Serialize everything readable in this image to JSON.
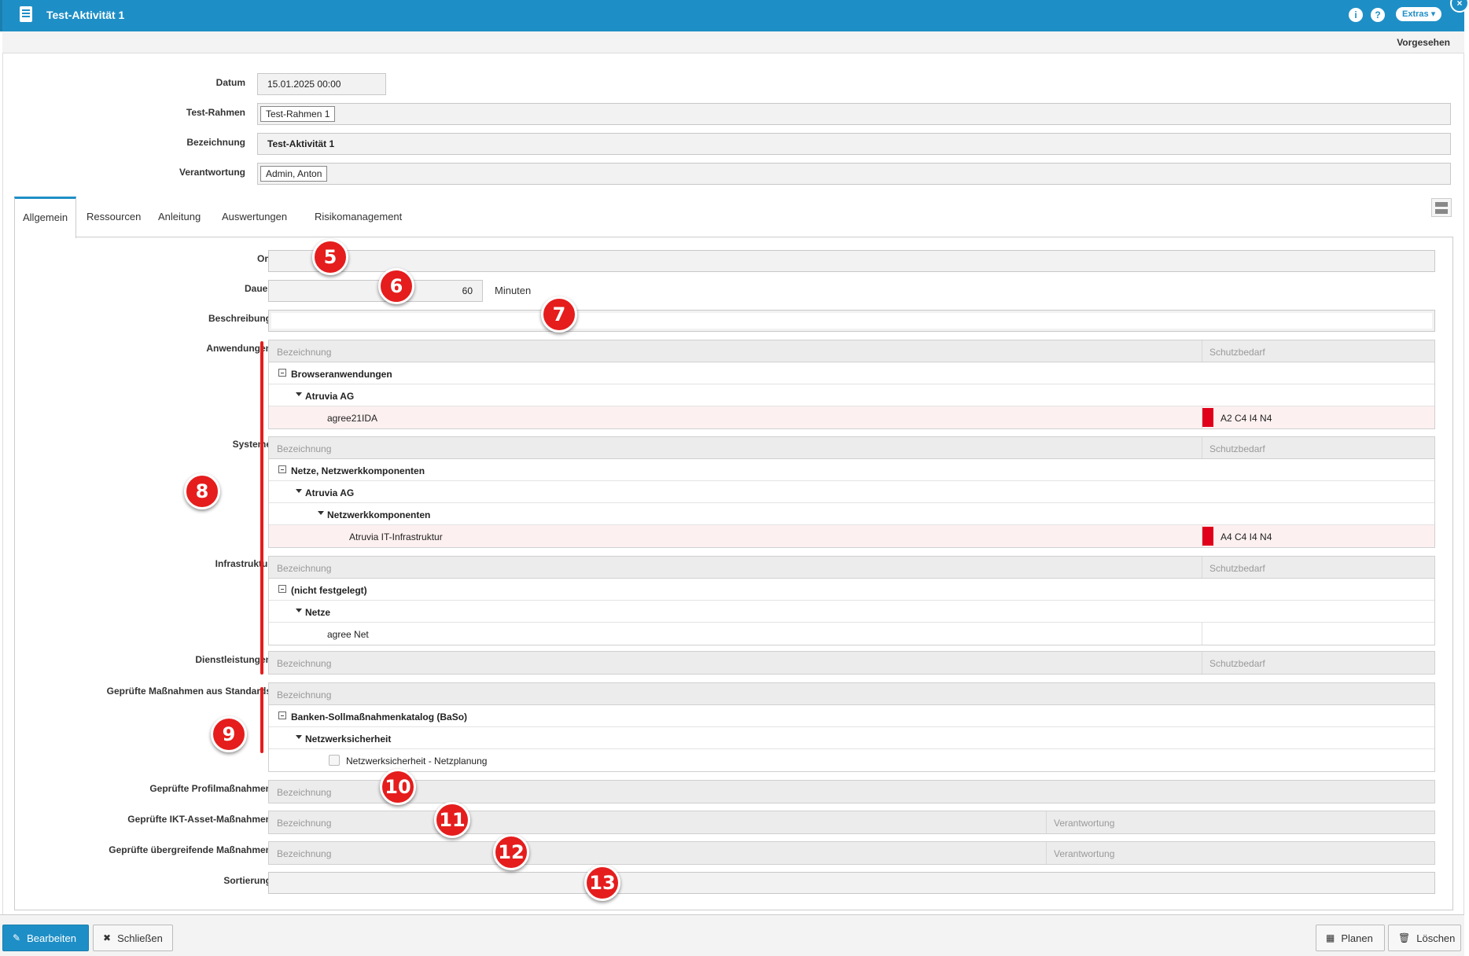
{
  "window": {
    "title": "Test-Aktivität 1",
    "extras_label": "Extras ▾",
    "info_label": "i",
    "help_label": "?",
    "close_label": "×"
  },
  "status": "Vorgesehen",
  "header_fields": {
    "datum": {
      "label": "Datum",
      "value": "15.01.2025 00:00"
    },
    "test_rahmen": {
      "label": "Test-Rahmen",
      "value": "Test-Rahmen 1"
    },
    "bezeichnung": {
      "label": "Bezeichnung",
      "value": "Test-Aktivität 1"
    },
    "verantwortung": {
      "label": "Verantwortung",
      "value": "Admin, Anton"
    }
  },
  "tabs": [
    "Allgemein",
    "Ressourcen",
    "Anleitung",
    "Auswertungen",
    "Risikomanagement"
  ],
  "allgemein": {
    "ort": {
      "label": "Ort",
      "value": ""
    },
    "dauer": {
      "label": "Dauer",
      "value": "60",
      "unit": "Minuten"
    },
    "beschreibung": {
      "label": "Beschreibung",
      "value": ""
    },
    "col_bezeichnung": "Bezeichnung",
    "col_schutzbedarf": "Schutzbedarf",
    "col_verantwortung": "Verantwortung",
    "anwendungen": {
      "label": "Anwendungen",
      "group": "Browseranwendungen",
      "sub": "Atruvia AG",
      "leaf": "agree21IDA",
      "schutz": "A2 C4 I4 N4"
    },
    "systeme": {
      "label": "Systeme",
      "group": "Netze, Netzwerkkomponenten",
      "sub": "Atruvia AG",
      "sub2": "Netzwerkkomponenten",
      "leaf": "Atruvia IT-Infrastruktur",
      "schutz": "A4 C4 I4 N4"
    },
    "infrastruktur": {
      "label": "Infrastruktur",
      "group": "(nicht festgelegt)",
      "sub": "Netze",
      "leaf": "agree Net"
    },
    "dienstleistungen": {
      "label": "Dienstleistungen"
    },
    "massnahmen_standards": {
      "label": "Geprüfte Maßnahmen aus Standards",
      "group": "Banken-Sollmaßnahmenkatalog (BaSo)",
      "sub": "Netzwerksicherheit",
      "leaf": "Netzwerksicherheit - Netzplanung"
    },
    "profilmassnahmen": {
      "label": "Geprüfte Profilmaßnahmen"
    },
    "ikt_asset": {
      "label": "Geprüfte IKT-Asset-Maßnahmen"
    },
    "uebergreifend": {
      "label": "Geprüfte übergreifende Maßnahmen"
    },
    "sortierung": {
      "label": "Sortierung",
      "value": ""
    }
  },
  "markers": [
    "5",
    "6",
    "7",
    "8",
    "9",
    "10",
    "11",
    "12",
    "13"
  ],
  "footer": {
    "bearbeiten": "Bearbeiten",
    "schliessen": "Schließen",
    "planen": "Planen",
    "loeschen": "Löschen"
  },
  "colors": {
    "accent": "#1e8fc6",
    "marker": "#e51d1d",
    "schutz_red": "#e0001a"
  }
}
